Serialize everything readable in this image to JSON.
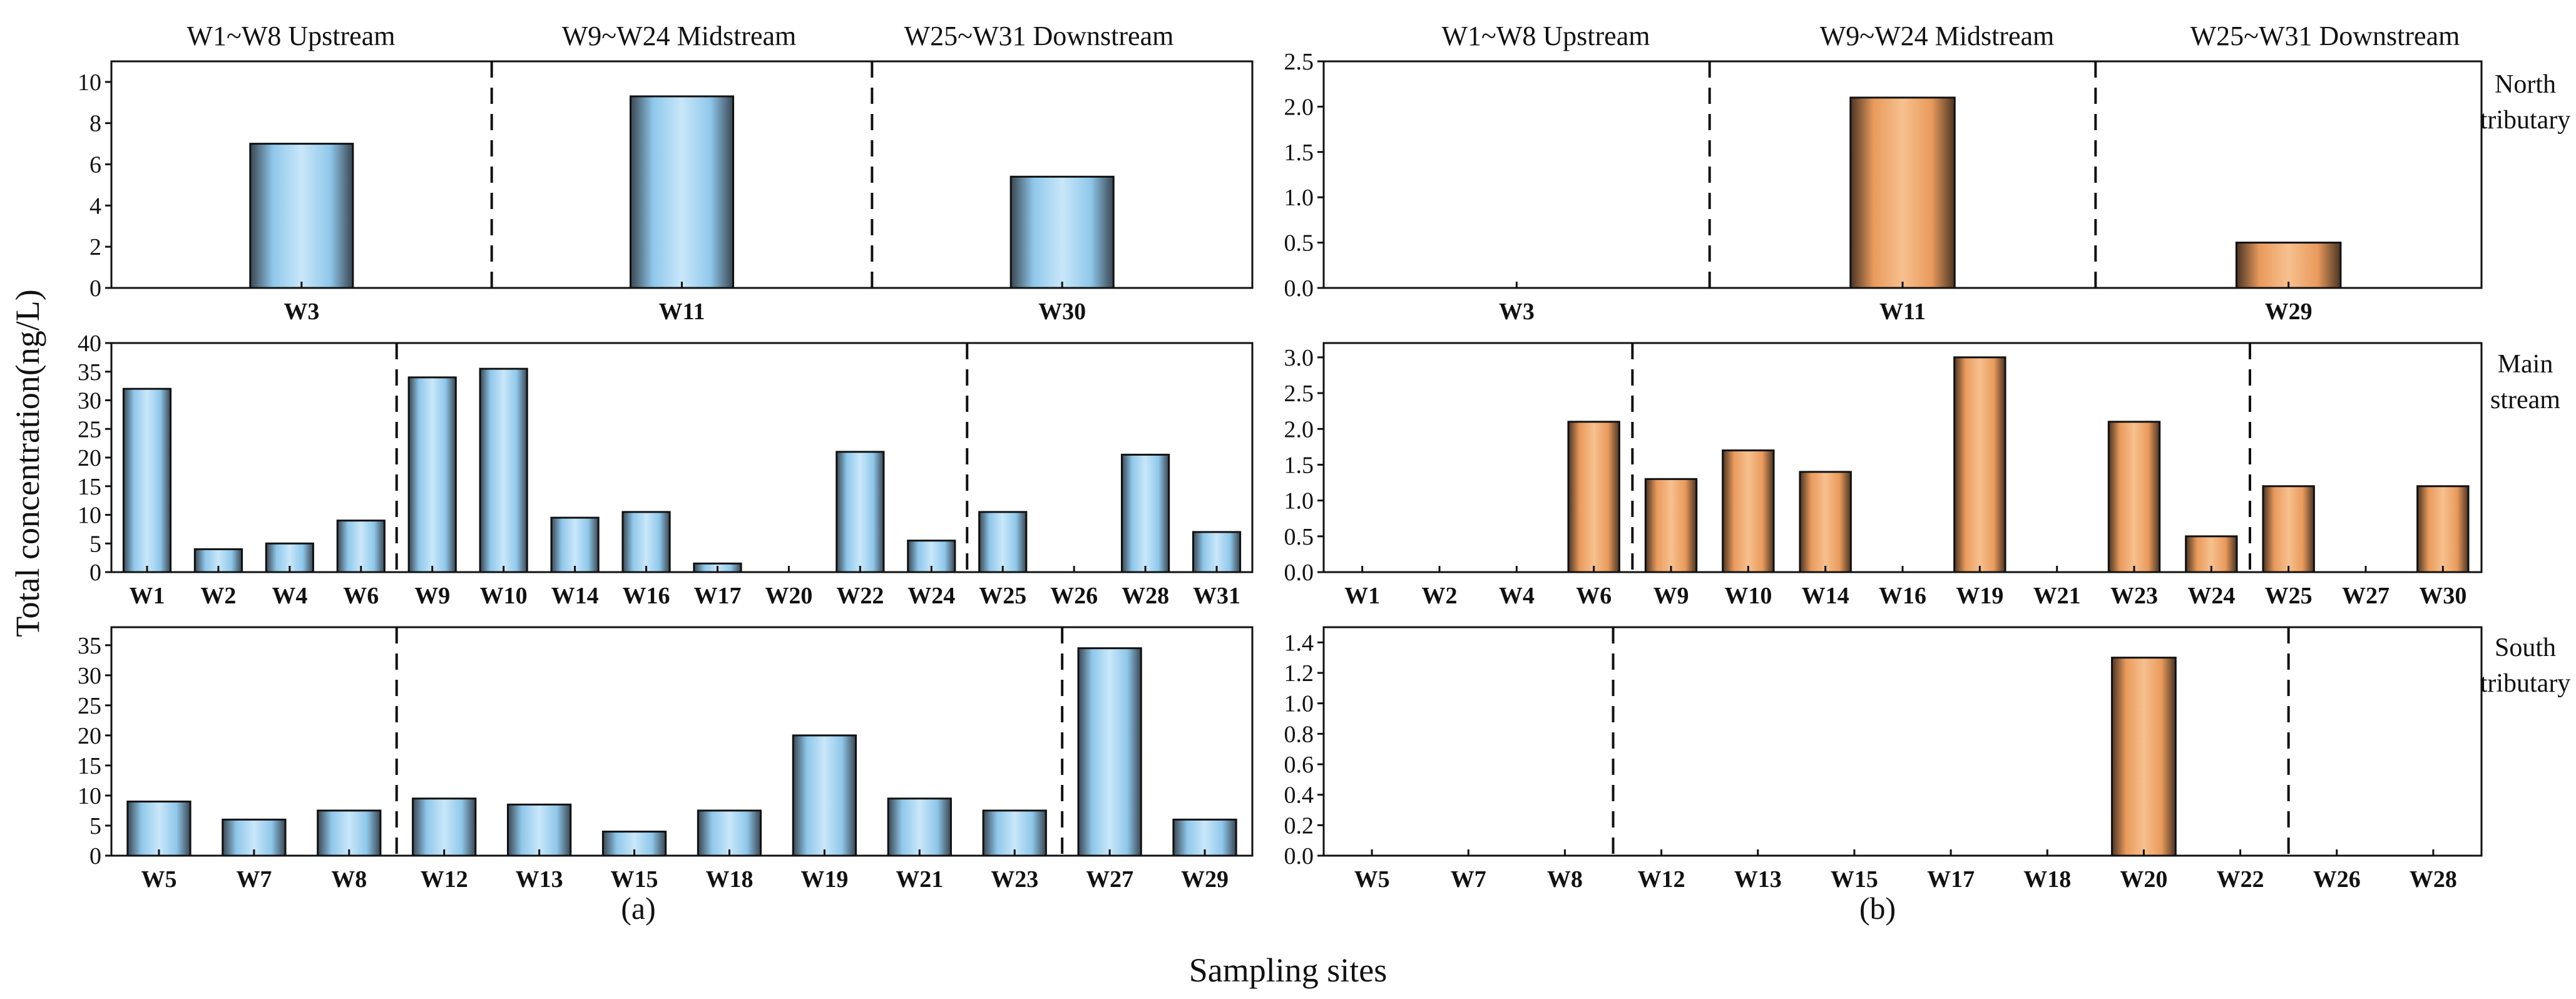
{
  "figure": {
    "ylabel": "Total concentration(ng/L)",
    "xlabel": "Sampling sites",
    "panel_labels": [
      "(a)",
      "(b)"
    ],
    "region_labels": [
      "W1~W8 Upstream",
      "W9~W24 Midstream",
      "W25~W31 Downstream"
    ],
    "row_labels": [
      [
        "North",
        "tributary"
      ],
      [
        "Main",
        "stream"
      ],
      [
        "South",
        "tributary"
      ]
    ],
    "colors": {
      "left_bars": "#9fd1f0",
      "right_bars": "#f0a868"
    }
  },
  "chart_data": [
    {
      "type": "bar",
      "panel": "(a)",
      "row": "North tributary",
      "categories": [
        "W3",
        "W11",
        "W30"
      ],
      "values": [
        7.0,
        9.3,
        5.4
      ],
      "ylim": [
        0,
        11
      ],
      "yticks": [
        0,
        2,
        4,
        6,
        8,
        10
      ],
      "dividers_after": [
        0,
        1
      ]
    },
    {
      "type": "bar",
      "panel": "(a)",
      "row": "Main stream",
      "categories": [
        "W1",
        "W2",
        "W4",
        "W6",
        "W9",
        "W10",
        "W14",
        "W16",
        "W17",
        "W20",
        "W22",
        "W24",
        "W25",
        "W26",
        "W28",
        "W31"
      ],
      "values": [
        32,
        4,
        5,
        9,
        34,
        35.5,
        9.5,
        10.5,
        1.5,
        0,
        21,
        5.5,
        10.5,
        0,
        20.5,
        7
      ],
      "ylim": [
        0,
        40
      ],
      "yticks": [
        0,
        5,
        10,
        15,
        20,
        25,
        30,
        35,
        40
      ],
      "dividers_after": [
        3,
        11
      ]
    },
    {
      "type": "bar",
      "panel": "(a)",
      "row": "South tributary",
      "categories": [
        "W5",
        "W7",
        "W8",
        "W12",
        "W13",
        "W15",
        "W18",
        "W19",
        "W21",
        "W23",
        "W27",
        "W29"
      ],
      "values": [
        9,
        6,
        7.5,
        9.5,
        8.5,
        4,
        7.5,
        20,
        9.5,
        7.5,
        34.5,
        6
      ],
      "ylim": [
        0,
        38
      ],
      "yticks": [
        0,
        5,
        10,
        15,
        20,
        25,
        30,
        35
      ],
      "dividers_after": [
        2,
        9
      ]
    },
    {
      "type": "bar",
      "panel": "(b)",
      "row": "North tributary",
      "categories": [
        "W3",
        "W11",
        "W29"
      ],
      "values": [
        0,
        2.1,
        0.5
      ],
      "ylim": [
        0,
        2.5
      ],
      "yticks": [
        0.0,
        0.5,
        1.0,
        1.5,
        2.0,
        2.5
      ],
      "dividers_after": [
        0,
        1
      ]
    },
    {
      "type": "bar",
      "panel": "(b)",
      "row": "Main stream",
      "categories": [
        "W1",
        "W2",
        "W4",
        "W6",
        "W9",
        "W10",
        "W14",
        "W16",
        "W19",
        "W21",
        "W23",
        "W24",
        "W25",
        "W27",
        "W30"
      ],
      "values": [
        0,
        0,
        0,
        2.1,
        1.3,
        1.7,
        1.4,
        0,
        3.0,
        0,
        2.1,
        0.5,
        1.2,
        0,
        1.2
      ],
      "ylim": [
        0,
        3.2
      ],
      "yticks": [
        0.0,
        0.5,
        1.0,
        1.5,
        2.0,
        2.5,
        3.0
      ],
      "dividers_after": [
        3,
        11
      ]
    },
    {
      "type": "bar",
      "panel": "(b)",
      "row": "South tributary",
      "categories": [
        "W5",
        "W7",
        "W8",
        "W12",
        "W13",
        "W15",
        "W17",
        "W18",
        "W20",
        "W22",
        "W26",
        "W28"
      ],
      "values": [
        0,
        0,
        0,
        0,
        0,
        0,
        0,
        0,
        1.3,
        0,
        0,
        0
      ],
      "ylim": [
        0,
        1.5
      ],
      "yticks": [
        0.0,
        0.2,
        0.4,
        0.6,
        0.8,
        1.0,
        1.2,
        1.4
      ],
      "dividers_after": [
        2,
        9
      ]
    }
  ]
}
